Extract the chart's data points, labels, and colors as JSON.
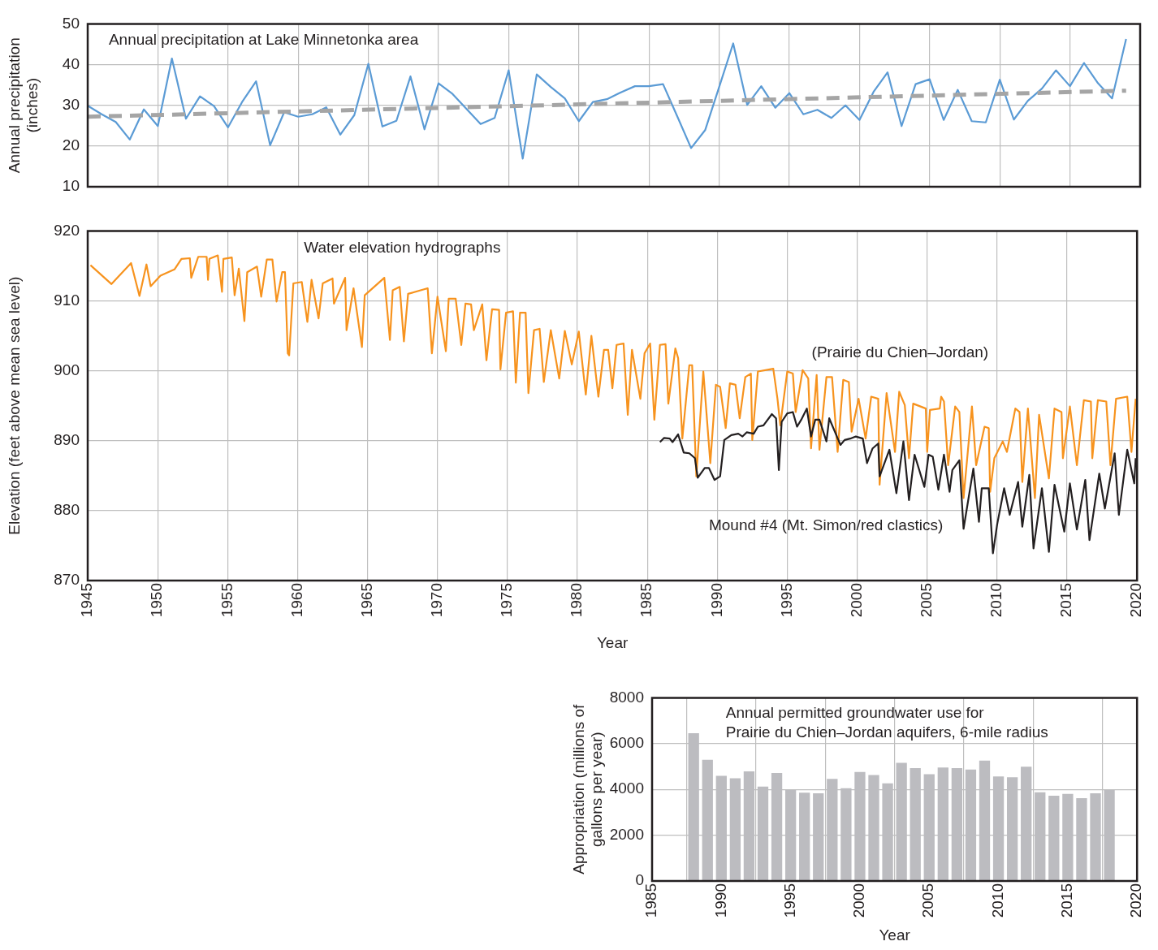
{
  "chart_data": [
    {
      "type": "line",
      "title": "Annual precipitation at Lake Minnetonka area",
      "ylabel": "Annual precipitation (inches)",
      "xlim": [
        1945,
        2020
      ],
      "xticks": [
        1945,
        1950,
        1955,
        1960,
        1965,
        1970,
        1975,
        1980,
        1985,
        1990,
        1995,
        2000,
        2005,
        2010,
        2015,
        2020
      ],
      "ylim": [
        10,
        50
      ],
      "yticks": [
        10,
        20,
        30,
        40,
        50
      ],
      "tick_labels": "y",
      "grid": true,
      "marker": "none",
      "x": [
        1945,
        1946,
        1947,
        1948,
        1949,
        1950,
        1951,
        1952,
        1953,
        1954,
        1955,
        1956,
        1957,
        1958,
        1959,
        1960,
        1961,
        1962,
        1963,
        1964,
        1965,
        1966,
        1967,
        1968,
        1969,
        1970,
        1971,
        1972,
        1973,
        1974,
        1975,
        1976,
        1977,
        1978,
        1979,
        1980,
        1981,
        1982,
        1983,
        1984,
        1985,
        1986,
        1987,
        1988,
        1989,
        1990,
        1991,
        1992,
        1993,
        1994,
        1995,
        1996,
        1997,
        1998,
        1999,
        2000,
        2001,
        2002,
        2003,
        2004,
        2005,
        2006,
        2007,
        2008,
        2009,
        2010,
        2011,
        2012,
        2013,
        2014,
        2015,
        2016,
        2017,
        2018,
        2019
      ],
      "series": [
        {
          "color": "#5b9bd5",
          "values": [
            29.9,
            27.8,
            25.9,
            21.6,
            29.0,
            24.9,
            41.5,
            26.7,
            32.2,
            29.8,
            24.6,
            30.8,
            35.9,
            20.2,
            28.3,
            27.2,
            27.8,
            29.5,
            22.8,
            27.6,
            40.2,
            24.8,
            26.2,
            37.1,
            24.1,
            35.4,
            32.8,
            29.1,
            25.4,
            26.9,
            38.6,
            16.9,
            37.6,
            34.5,
            31.7,
            26.1,
            30.8,
            31.5,
            33.2,
            34.7,
            34.7,
            35.2,
            27.4,
            19.5,
            23.9,
            34.5,
            45.2,
            30.1,
            34.7,
            29.4,
            33.0,
            27.8,
            28.9,
            26.9,
            30.0,
            26.4,
            33.3,
            38.1,
            24.9,
            35.2,
            36.4,
            26.4,
            33.8,
            26.1,
            25.8,
            36.3,
            26.5,
            31.1,
            34.1,
            38.6,
            34.7,
            40.4,
            35.4,
            31.7,
            46.3
          ]
        },
        {
          "type": "line",
          "color": "#a5a5a5",
          "line_style": "dashed",
          "x": [
            1945,
            2019
          ],
          "values": [
            27.2,
            33.6
          ]
        }
      ]
    },
    {
      "type": "line",
      "title": "Water elevation hydrographs",
      "ylabel": "Elevation (feet above mean sea level)",
      "xlabel": "Year",
      "xlim": [
        1945,
        2020
      ],
      "xticks": [
        1945,
        1950,
        1955,
        1960,
        1965,
        1970,
        1975,
        1980,
        1985,
        1990,
        1995,
        2000,
        2005,
        2010,
        2015,
        2020
      ],
      "ylim": [
        870,
        920
      ],
      "yticks": [
        870,
        880,
        890,
        900,
        910,
        920
      ],
      "grid": true,
      "marker": "none",
      "series": [
        {
          "name": "(Prairie du Chien–Jordan)",
          "color": "#f7931e",
          "x": [
            1945.2,
            1946.7,
            1948.1,
            1948.7,
            1949.2,
            1949.5,
            1950.2,
            1951.2,
            1951.7,
            1952.3,
            1952.4,
            1952.9,
            1953.5,
            1953.6,
            1953.7,
            1954.3,
            1954.6,
            1954.7,
            1955.3,
            1955.5,
            1955.8,
            1956.2,
            1956.4,
            1957.1,
            1957.4,
            1957.8,
            1958.2,
            1958.5,
            1958.9,
            1959.1,
            1959.3,
            1959.4,
            1959.7,
            1960.3,
            1960.7,
            1961.0,
            1961.5,
            1961.8,
            1962.5,
            1962.6,
            1963.4,
            1963.5,
            1964.0,
            1964.6,
            1964.8,
            1966.2,
            1966.6,
            1966.8,
            1967.3,
            1967.6,
            1967.9,
            1969.3,
            1969.6,
            1970.0,
            1970.6,
            1970.8,
            1971.3,
            1971.7,
            1972.0,
            1972.4,
            1972.6,
            1973.2,
            1973.5,
            1973.9,
            1974.4,
            1974.5,
            1974.9,
            1975.4,
            1975.6,
            1975.9,
            1976.3,
            1976.5,
            1976.9,
            1977.3,
            1977.6,
            1978.1,
            1978.7,
            1979.1,
            1979.6,
            1980.1,
            1980.6,
            1981.0,
            1981.5,
            1981.9,
            1982.2,
            1982.5,
            1982.8,
            1983.3,
            1983.6,
            1983.9,
            1984.5,
            1984.8,
            1985.2,
            1985.5,
            1985.9,
            1986.3,
            1986.5,
            1987.0,
            1987.2,
            1987.5,
            1988.0,
            1988.2,
            1988.5,
            1989.0,
            1989.5,
            1989.9,
            1990.2,
            1990.6,
            1990.9,
            1991.3,
            1991.6,
            1992.0,
            1992.4,
            1992.5,
            1992.9,
            1994.0,
            1994.3,
            1994.5,
            1995.0,
            1995.4,
            1995.6,
            1996.1,
            1996.5,
            1996.7,
            1997.1,
            1997.3,
            1997.8,
            1998.2,
            1998.6,
            1999.0,
            1999.4,
            1999.6,
            2000.1,
            2000.6,
            2001.0,
            2001.5,
            2001.6,
            2002.1,
            2002.7,
            2003.0,
            2003.4,
            2003.7,
            2004.0,
            2004.9,
            2005.0,
            2005.2,
            2005.9,
            2006.0,
            2006.2,
            2006.5,
            2007.0,
            2007.3,
            2007.6,
            2008.2,
            2008.5,
            2009.1,
            2009.4,
            2009.5,
            2009.8,
            2010.4,
            2010.7,
            2011.3,
            2011.6,
            2011.8,
            2012.2,
            2012.7,
            2013.0,
            2013.7,
            2014.1,
            2014.6,
            2014.7,
            2015.2,
            2015.7,
            2016.2,
            2016.7,
            2016.8,
            2017.2,
            2017.8,
            2018.1,
            2018.5,
            2019.3,
            2019.6,
            2019.9
          ],
          "values": [
            915.1,
            912.4,
            915.4,
            910.7,
            915.2,
            912.1,
            913.6,
            914.5,
            916.0,
            916.1,
            913.3,
            916.3,
            916.3,
            913.0,
            916.0,
            916.5,
            911.3,
            916.0,
            916.2,
            910.8,
            914.6,
            907.1,
            914.1,
            914.9,
            910.6,
            915.9,
            915.9,
            909.9,
            914.1,
            914.1,
            902.5,
            902.2,
            912.5,
            912.7,
            907.0,
            913.0,
            907.5,
            912.5,
            913.2,
            909.6,
            913.3,
            905.8,
            911.8,
            903.4,
            910.8,
            913.3,
            904.4,
            911.5,
            912.0,
            904.2,
            911.0,
            911.8,
            902.5,
            910.6,
            902.8,
            910.3,
            910.3,
            903.7,
            909.6,
            909.5,
            905.8,
            909.5,
            901.5,
            908.8,
            908.7,
            900.2,
            908.3,
            908.5,
            898.3,
            908.3,
            908.3,
            896.8,
            905.8,
            906.0,
            898.4,
            905.8,
            898.9,
            905.7,
            900.9,
            905.6,
            896.6,
            905.0,
            896.3,
            903.0,
            903.0,
            897.5,
            903.7,
            903.9,
            893.7,
            903.0,
            896.0,
            902.5,
            903.9,
            893.0,
            903.7,
            903.8,
            895.3,
            903.2,
            901.8,
            890.3,
            900.8,
            900.8,
            884.9,
            899.9,
            886.8,
            898.0,
            897.7,
            891.8,
            898.2,
            898.0,
            893.2,
            899.1,
            899.6,
            890.1,
            899.9,
            900.3,
            896.0,
            892.2,
            899.9,
            899.6,
            894.1,
            900.1,
            898.9,
            888.9,
            899.4,
            888.7,
            899.1,
            899.1,
            888.4,
            898.7,
            898.4,
            891.3,
            896.0,
            890.3,
            896.3,
            896.0,
            883.7,
            896.8,
            888.4,
            897.0,
            895.1,
            887.5,
            895.3,
            894.6,
            888.4,
            894.4,
            894.6,
            896.3,
            895.6,
            886.5,
            894.9,
            894.1,
            881.8,
            894.9,
            886.5,
            892.0,
            891.8,
            882.7,
            887.5,
            889.9,
            888.4,
            894.6,
            894.1,
            884.1,
            894.6,
            881.8,
            893.7,
            884.6,
            894.6,
            894.1,
            887.5,
            894.9,
            886.5,
            895.8,
            895.6,
            887.5,
            895.8,
            895.6,
            886.5,
            896.0,
            896.3,
            888.4,
            896.0
          ]
        },
        {
          "name": "Mound #4 (Mt. Simon/red clastics)",
          "color": "#231f20",
          "x": [
            1985.9,
            1986.2,
            1986.6,
            1986.8,
            1987.2,
            1987.6,
            1988.0,
            1988.4,
            1988.6,
            1989.1,
            1989.4,
            1989.8,
            1990.2,
            1990.5,
            1991.0,
            1991.5,
            1991.8,
            1992.1,
            1992.6,
            1992.9,
            1993.3,
            1993.9,
            1994.2,
            1994.4,
            1994.6,
            1995.0,
            1995.4,
            1995.7,
            1996.0,
            1996.4,
            1996.7,
            1997.0,
            1997.3,
            1997.8,
            1998.0,
            1998.8,
            1999.1,
            1999.5,
            1999.9,
            2000.4,
            2000.7,
            2001.1,
            2001.5,
            2001.6,
            2002.3,
            2002.8,
            2003.3,
            2003.7,
            2004.1,
            2004.8,
            2005.1,
            2005.4,
            2005.8,
            2006.2,
            2006.6,
            2006.8,
            2007.3,
            2007.6,
            2008.3,
            2008.7,
            2008.9,
            2009.4,
            2009.7,
            2010.0,
            2010.5,
            2010.9,
            2011.5,
            2011.8,
            2012.3,
            2012.6,
            2013.2,
            2013.7,
            2014.1,
            2014.8,
            2015.2,
            2015.7,
            2016.3,
            2016.6,
            2017.3,
            2017.7,
            2018.4,
            2018.7,
            2019.3,
            2019.8,
            2019.9
          ],
          "values": [
            889.8,
            890.4,
            890.3,
            889.8,
            890.9,
            888.3,
            888.2,
            887.5,
            884.7,
            886.1,
            886.1,
            884.4,
            884.9,
            890.1,
            890.8,
            891.0,
            890.6,
            891.2,
            891.0,
            892.0,
            892.2,
            893.8,
            893.2,
            885.8,
            892.7,
            893.9,
            894.1,
            892.0,
            893.0,
            894.6,
            890.6,
            893.0,
            893.0,
            889.9,
            893.2,
            889.4,
            890.1,
            890.3,
            890.6,
            890.3,
            886.8,
            888.9,
            889.6,
            884.9,
            888.7,
            882.5,
            889.9,
            881.5,
            888.0,
            883.4,
            888.0,
            887.7,
            883.0,
            888.0,
            882.7,
            885.8,
            887.2,
            877.4,
            886.0,
            878.4,
            883.2,
            883.2,
            873.9,
            878.0,
            883.2,
            879.4,
            884.1,
            877.7,
            885.1,
            874.6,
            883.2,
            874.1,
            883.7,
            877.0,
            883.9,
            877.3,
            884.4,
            875.8,
            885.3,
            880.3,
            888.2,
            879.4,
            888.7,
            883.9,
            887.5
          ]
        }
      ]
    },
    {
      "type": "bar",
      "title": "Annual permitted groundwater use for\nPrairie du Chien–Jordan aquifers, 6-mile radius",
      "ylabel": "Appropriation (millions of gallons per year)",
      "xlabel": "Year",
      "xlim": [
        1985,
        2020
      ],
      "xticks": [
        1985,
        1990,
        1995,
        2000,
        2005,
        2010,
        2015,
        2020
      ],
      "ylim": [
        0,
        8000
      ],
      "yticks": [
        0,
        2000,
        4000,
        6000,
        8000
      ],
      "grid": true,
      "color": "#bcbcc0",
      "x": [
        1988,
        1989,
        1990,
        1991,
        1992,
        1993,
        1994,
        1995,
        1996,
        1997,
        1998,
        1999,
        2000,
        2001,
        2002,
        2003,
        2004,
        2005,
        2006,
        2007,
        2008,
        2009,
        2010,
        2011,
        2012,
        2013,
        2014,
        2015,
        2016,
        2017,
        2018
      ],
      "values": [
        6450,
        5290,
        4590,
        4490,
        4790,
        4120,
        4720,
        3970,
        3860,
        3830,
        4460,
        4050,
        4760,
        4630,
        4260,
        5160,
        4930,
        4660,
        4960,
        4930,
        4870,
        5260,
        4570,
        4530,
        4990,
        3870,
        3720,
        3800,
        3620,
        3830,
        3970
      ]
    }
  ]
}
